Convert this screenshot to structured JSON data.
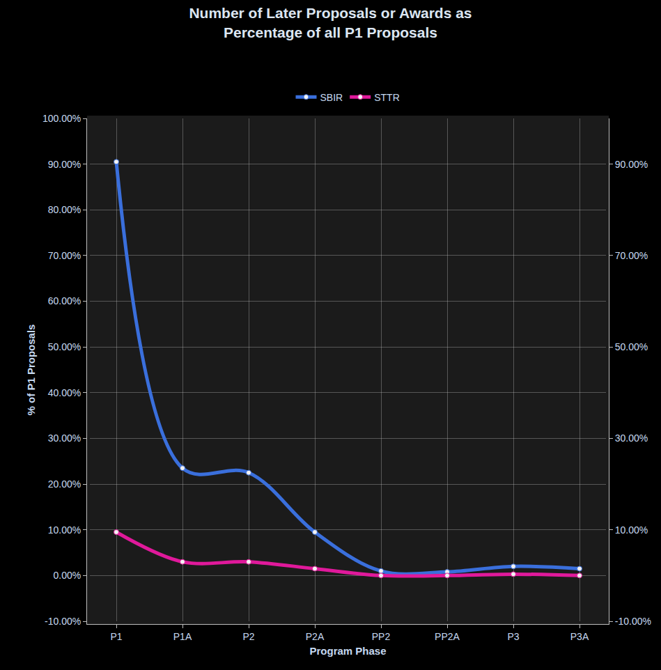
{
  "chart_data": {
    "type": "line",
    "title": "Number of Later Proposals or Awards as Percentage of all P1 Proposals",
    "x_label": "Program Phase",
    "y_label": "% of P1 Proposals",
    "categories": [
      "P1",
      "P1A",
      "P2",
      "P2A",
      "PP2",
      "PP2A",
      "P3",
      "P3A"
    ],
    "series": [
      {
        "name": "SBIR",
        "color": "#3a6fdc",
        "marker": "circle",
        "line_style": "spline",
        "values": [
          90.5,
          23.5,
          22.5,
          9.5,
          1.0,
          0.8,
          2.0,
          1.5
        ]
      },
      {
        "name": "STTR",
        "color": "#e0199b",
        "marker": "circle",
        "line_style": "spline",
        "values": [
          9.5,
          3.0,
          3.0,
          1.5,
          0.0,
          0.0,
          0.3,
          0.0
        ]
      }
    ],
    "ylim": [
      -10,
      100
    ],
    "yticks": [
      {
        "value": -10,
        "label": "-10.00%"
      },
      {
        "value": 0,
        "label": "0.00%"
      },
      {
        "value": 10,
        "label": "10.00%"
      },
      {
        "value": 20,
        "label": "20.00%"
      },
      {
        "value": 30,
        "label": "30.00%"
      },
      {
        "value": 40,
        "label": "40.00%"
      },
      {
        "value": 50,
        "label": "50.00%"
      },
      {
        "value": 60,
        "label": "60.00%"
      },
      {
        "value": 70,
        "label": "70.00%"
      },
      {
        "value": 80,
        "label": "80.00%"
      },
      {
        "value": 90,
        "label": "90.00%"
      },
      {
        "value": 100,
        "label": "100.00%"
      }
    ],
    "y2lim": [
      -10,
      100
    ],
    "y2ticks": [
      {
        "value": -10,
        "label": "-10.00%"
      },
      {
        "value": 10,
        "label": "10.00%"
      },
      {
        "value": 30,
        "label": "30.00%"
      },
      {
        "value": 50,
        "label": "50.00%"
      },
      {
        "value": 70,
        "label": "70.00%"
      },
      {
        "value": 90,
        "label": "90.00%"
      }
    ],
    "grid": true,
    "legend": "top"
  }
}
